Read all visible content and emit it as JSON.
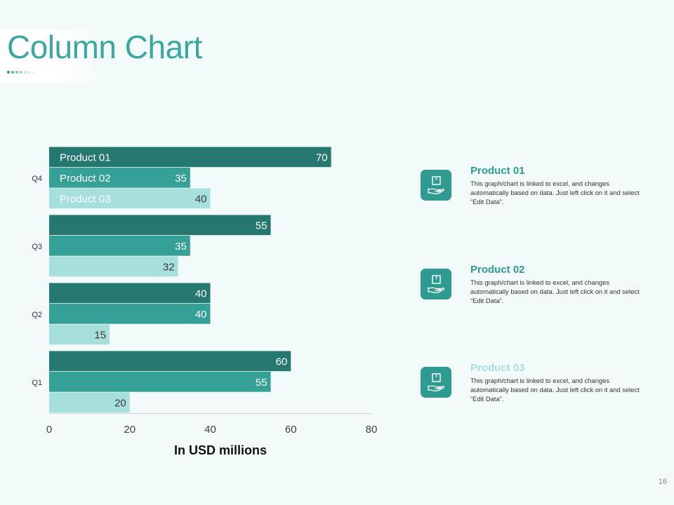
{
  "slide": {
    "title": "Column Chart",
    "page_number": "16"
  },
  "colors": {
    "title": "#3aa89c",
    "dots": [
      "#2f9b90",
      "#5bb5ac",
      "#7fc5be",
      "#a3d6d1",
      "#c3e5e1",
      "#dcf0ee",
      "#eaf6f5"
    ],
    "product_01": "#257870",
    "product_02": "#34a096",
    "product_03": "#a6dfdb",
    "icon_bg": "#2f9b90",
    "legend_title_01": "#2f9b90",
    "legend_title_02": "#2f9b90",
    "legend_title_03": "#a6dfdb"
  },
  "chart_data": {
    "type": "bar",
    "orientation": "horizontal",
    "categories": [
      "Q1",
      "Q2",
      "Q3",
      "Q4"
    ],
    "series": [
      {
        "name": "Product 01",
        "values": [
          60,
          40,
          55,
          70
        ]
      },
      {
        "name": "Product 02",
        "values": [
          55,
          40,
          35,
          35
        ]
      },
      {
        "name": "Product 03",
        "values": [
          20,
          15,
          32,
          40
        ]
      }
    ],
    "xlabel": "In USD millions",
    "xlim": [
      0,
      80
    ],
    "x_ticks": [
      0,
      20,
      40,
      60,
      80
    ],
    "legend": "inside bars of top category",
    "grid": false
  },
  "legend": [
    {
      "title": "Product 01",
      "description": "This graph/chart is linked to excel, and changes automatically based on data. Just left click on it and select “Edit Data”.",
      "icon": "hand-holding-box-icon"
    },
    {
      "title": "Product 02",
      "description": "This graph/chart is linked to excel, and changes automatically based on data. Just left click on it and select “Edit Data”.",
      "icon": "hand-holding-box-icon"
    },
    {
      "title": "Product 03",
      "description": "This graph/chart is linked to excel, and changes automatically based on data. Just left click on it and select “Edit Data”.",
      "icon": "hand-holding-box-icon"
    }
  ]
}
